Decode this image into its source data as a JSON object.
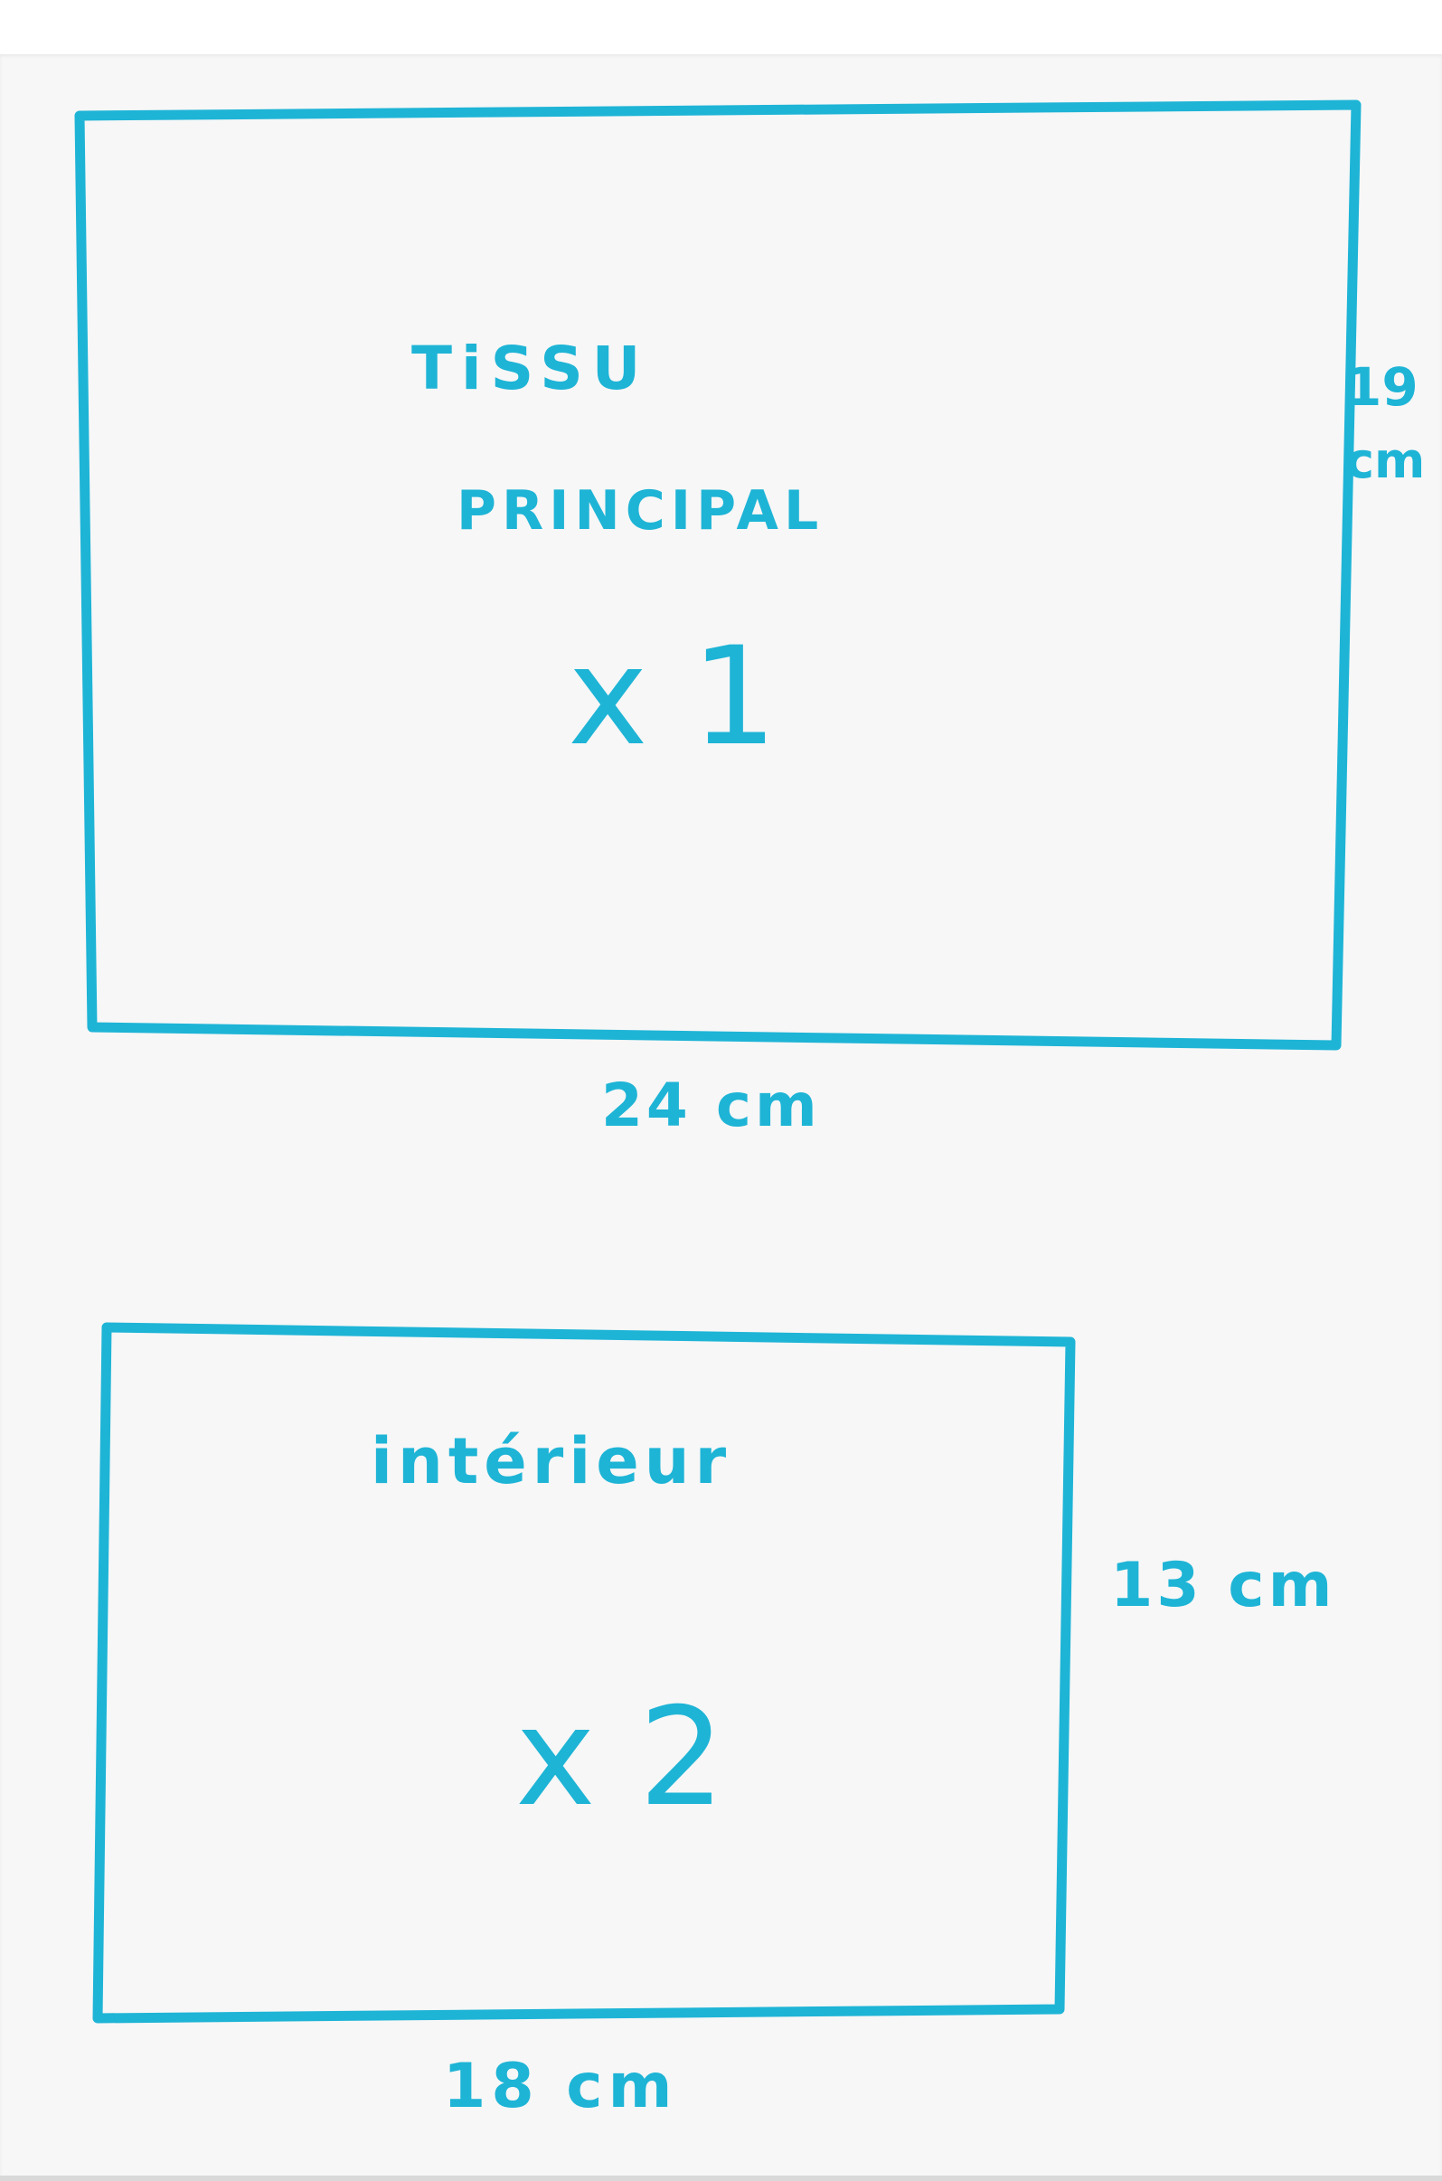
{
  "colors": {
    "paper": "#f7f7f7",
    "ink": "#1eb4d6"
  },
  "pieces": [
    {
      "title_line1": "TiSSU",
      "title_line2": "PRINCIPAL",
      "quantity": "x 1",
      "width_label": "24 cm",
      "height_label_line1": "19",
      "height_label_line2": "cm"
    },
    {
      "title_line1": "intérieur",
      "quantity": "x 2",
      "width_label": "18 cm",
      "height_label": "13 cm"
    }
  ]
}
